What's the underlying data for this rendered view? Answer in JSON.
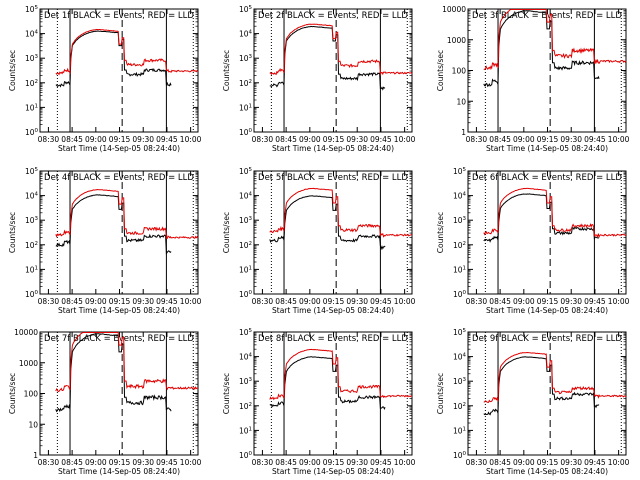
{
  "figure": {
    "grid": {
      "rows": 3,
      "cols": 3
    },
    "colors": {
      "events": "#000000",
      "lld": "#e00000",
      "frame": "#000000",
      "background": "#ffffff"
    },
    "legend_note": "BLACK = Events, RED = LLD",
    "ylabel": "Counts/sec",
    "xlabel": "Start Time (14-Sep-05 08:24:40)",
    "x_ticks": [
      "08:30",
      "08:45",
      "09:00",
      "09:15",
      "09:30",
      "09:45",
      "10:00"
    ],
    "x_tick_values_min": [
      5.33,
      20.33,
      35.33,
      50.33,
      65.33,
      80.33,
      95.33
    ],
    "x_range_min": [
      0,
      100
    ]
  },
  "chart_data": [
    {
      "type": "line",
      "title": "Det 1f BLACK = Events, RED = LLD",
      "log_y": true,
      "ylim": [
        1,
        100000
      ],
      "y_tick_labels": [
        "10^0",
        "10^1",
        "10^2",
        "10^3",
        "10^4",
        "10^5"
      ],
      "xlabel": "Start Time (14-Sep-05 08:24:40)",
      "ylabel": "Counts/sec",
      "vlines": [
        {
          "x": 11,
          "style": "dotted"
        },
        {
          "x": 19,
          "style": "solid"
        },
        {
          "x": 52,
          "style": "dashed"
        },
        {
          "x": 80,
          "style": "solid"
        },
        {
          "x": 97,
          "style": "dotted"
        }
      ],
      "series": [
        {
          "name": "Events",
          "color": "#000000",
          "pre": 80,
          "peak": 13000,
          "post": 220,
          "end": 90
        },
        {
          "name": "LLD",
          "color": "#e00000",
          "pre": 250,
          "peak": 15000,
          "post": 550,
          "end": 300
        }
      ]
    },
    {
      "type": "line",
      "title": "Det 2f BLACK = Events, RED = LLD",
      "log_y": true,
      "ylim": [
        1,
        100000
      ],
      "y_tick_labels": [
        "10^0",
        "10^1",
        "10^2",
        "10^3",
        "10^4",
        "10^5"
      ],
      "xlabel": "Start Time (14-Sep-05 08:24:40)",
      "ylabel": "Counts/sec",
      "vlines": [
        {
          "x": 11,
          "style": "dotted"
        },
        {
          "x": 19,
          "style": "solid"
        },
        {
          "x": 52,
          "style": "dashed"
        },
        {
          "x": 80,
          "style": "solid"
        },
        {
          "x": 97,
          "style": "dotted"
        }
      ],
      "series": [
        {
          "name": "Events",
          "color": "#000000",
          "pre": 80,
          "peak": 20000,
          "post": 150,
          "end": 60
        },
        {
          "name": "LLD",
          "color": "#e00000",
          "pre": 250,
          "peak": 25000,
          "post": 500,
          "end": 250
        }
      ]
    },
    {
      "type": "line",
      "title": "Det 3f BLACK = Events, RED = LLD",
      "log_y": true,
      "ylim": [
        1,
        10000
      ],
      "y_tick_labels": [
        "1",
        "10",
        "100",
        "1000",
        "10000"
      ],
      "xlabel": "Start Time (14-Sep-05 08:24:40)",
      "ylabel": "Counts/sec",
      "vlines": [
        {
          "x": 11,
          "style": "dotted"
        },
        {
          "x": 19,
          "style": "solid"
        },
        {
          "x": 52,
          "style": "dashed"
        },
        {
          "x": 80,
          "style": "solid"
        },
        {
          "x": 97,
          "style": "dotted"
        }
      ],
      "series": [
        {
          "name": "Events",
          "color": "#000000",
          "pre": 35,
          "peak": 9000,
          "post": 120,
          "end": 60
        },
        {
          "name": "LLD",
          "color": "#e00000",
          "pre": 120,
          "peak": 15000,
          "post": 300,
          "end": 200
        }
      ]
    },
    {
      "type": "line",
      "title": "Det 4f BLACK = Events, RED = LLD",
      "log_y": true,
      "ylim": [
        1,
        100000
      ],
      "y_tick_labels": [
        "10^0",
        "10^1",
        "10^2",
        "10^3",
        "10^4",
        "10^5"
      ],
      "xlabel": "Start Time (14-Sep-05 08:24:40)",
      "ylabel": "Counts/sec",
      "vlines": [
        {
          "x": 11,
          "style": "dotted"
        },
        {
          "x": 19,
          "style": "solid"
        },
        {
          "x": 52,
          "style": "dashed"
        },
        {
          "x": 80,
          "style": "solid"
        },
        {
          "x": 97,
          "style": "dotted"
        }
      ],
      "series": [
        {
          "name": "Events",
          "color": "#000000",
          "pre": 100,
          "peak": 11000,
          "post": 150,
          "end": 50
        },
        {
          "name": "LLD",
          "color": "#e00000",
          "pre": 250,
          "peak": 18000,
          "post": 300,
          "end": 200
        }
      ]
    },
    {
      "type": "line",
      "title": "Det 5f BLACK = Events, RED = LLD",
      "log_y": true,
      "ylim": [
        1,
        100000
      ],
      "y_tick_labels": [
        "10^0",
        "10^1",
        "10^2",
        "10^3",
        "10^4",
        "10^5"
      ],
      "xlabel": "Start Time (14-Sep-05 08:24:40)",
      "ylabel": "Counts/sec",
      "vlines": [
        {
          "x": 11,
          "style": "dotted"
        },
        {
          "x": 19,
          "style": "solid"
        },
        {
          "x": 52,
          "style": "dashed"
        },
        {
          "x": 80,
          "style": "solid"
        },
        {
          "x": 97,
          "style": "dotted"
        }
      ],
      "series": [
        {
          "name": "Events",
          "color": "#000000",
          "pre": 150,
          "peak": 10000,
          "post": 150,
          "end": 80
        },
        {
          "name": "LLD",
          "color": "#e00000",
          "pre": 350,
          "peak": 20000,
          "post": 400,
          "end": 250
        }
      ]
    },
    {
      "type": "line",
      "title": "Det 6f BLACK = Events, RED = LLD",
      "log_y": true,
      "ylim": [
        1,
        100000
      ],
      "y_tick_labels": [
        "10^0",
        "10^1",
        "10^2",
        "10^3",
        "10^4",
        "10^5"
      ],
      "xlabel": "Start Time (14-Sep-05 08:24:40)",
      "ylabel": "Counts/sec",
      "vlines": [
        {
          "x": 11,
          "style": "dotted"
        },
        {
          "x": 19,
          "style": "solid"
        },
        {
          "x": 52,
          "style": "dashed"
        },
        {
          "x": 80,
          "style": "solid"
        },
        {
          "x": 97,
          "style": "dotted"
        }
      ],
      "series": [
        {
          "name": "Events",
          "color": "#000000",
          "pre": 150,
          "peak": 12000,
          "post": 300,
          "end": 200
        },
        {
          "name": "LLD",
          "color": "#e00000",
          "pre": 300,
          "peak": 20000,
          "post": 400,
          "end": 250
        }
      ]
    },
    {
      "type": "line",
      "title": "Det 7f BLACK = Events, RED = LLD",
      "log_y": true,
      "ylim": [
        1,
        10000
      ],
      "y_tick_labels": [
        "1",
        "10",
        "100",
        "1000",
        "10000"
      ],
      "xlabel": "Start Time (14-Sep-05 08:24:40)",
      "ylabel": "Counts/sec",
      "vlines": [
        {
          "x": 11,
          "style": "dotted"
        },
        {
          "x": 19,
          "style": "solid"
        },
        {
          "x": 52,
          "style": "dashed"
        },
        {
          "x": 80,
          "style": "solid"
        },
        {
          "x": 97,
          "style": "dotted"
        }
      ],
      "series": [
        {
          "name": "Events",
          "color": "#000000",
          "pre": 30,
          "peak": 9000,
          "post": 50,
          "end": 30
        },
        {
          "name": "LLD",
          "color": "#e00000",
          "pre": 130,
          "peak": 15000,
          "post": 170,
          "end": 150
        }
      ]
    },
    {
      "type": "line",
      "title": "Det 8f BLACK = Events, RED = LLD",
      "log_y": true,
      "ylim": [
        1,
        100000
      ],
      "y_tick_labels": [
        "10^0",
        "10^1",
        "10^2",
        "10^3",
        "10^4",
        "10^5"
      ],
      "xlabel": "Start Time (14-Sep-05 08:24:40)",
      "ylabel": "Counts/sec",
      "vlines": [
        {
          "x": 11,
          "style": "dotted"
        },
        {
          "x": 19,
          "style": "solid"
        },
        {
          "x": 52,
          "style": "dashed"
        },
        {
          "x": 80,
          "style": "solid"
        },
        {
          "x": 97,
          "style": "dotted"
        }
      ],
      "series": [
        {
          "name": "Events",
          "color": "#000000",
          "pre": 100,
          "peak": 10000,
          "post": 150,
          "end": 80
        },
        {
          "name": "LLD",
          "color": "#e00000",
          "pre": 200,
          "peak": 20000,
          "post": 400,
          "end": 250
        }
      ]
    },
    {
      "type": "line",
      "title": "Det 9f BLACK = Events, RED = LLD",
      "log_y": true,
      "ylim": [
        1,
        100000
      ],
      "y_tick_labels": [
        "10^0",
        "10^1",
        "10^2",
        "10^3",
        "10^4",
        "10^5"
      ],
      "xlabel": "Start Time (14-Sep-05 08:24:40)",
      "ylabel": "Counts/sec",
      "vlines": [
        {
          "x": 11,
          "style": "dotted"
        },
        {
          "x": 19,
          "style": "solid"
        },
        {
          "x": 52,
          "style": "dashed"
        },
        {
          "x": 80,
          "style": "solid"
        },
        {
          "x": 97,
          "style": "dotted"
        }
      ],
      "series": [
        {
          "name": "Events",
          "color": "#000000",
          "pre": 50,
          "peak": 10000,
          "post": 200,
          "end": 100
        },
        {
          "name": "LLD",
          "color": "#e00000",
          "pre": 150,
          "peak": 15000,
          "post": 350,
          "end": 250
        }
      ]
    }
  ]
}
